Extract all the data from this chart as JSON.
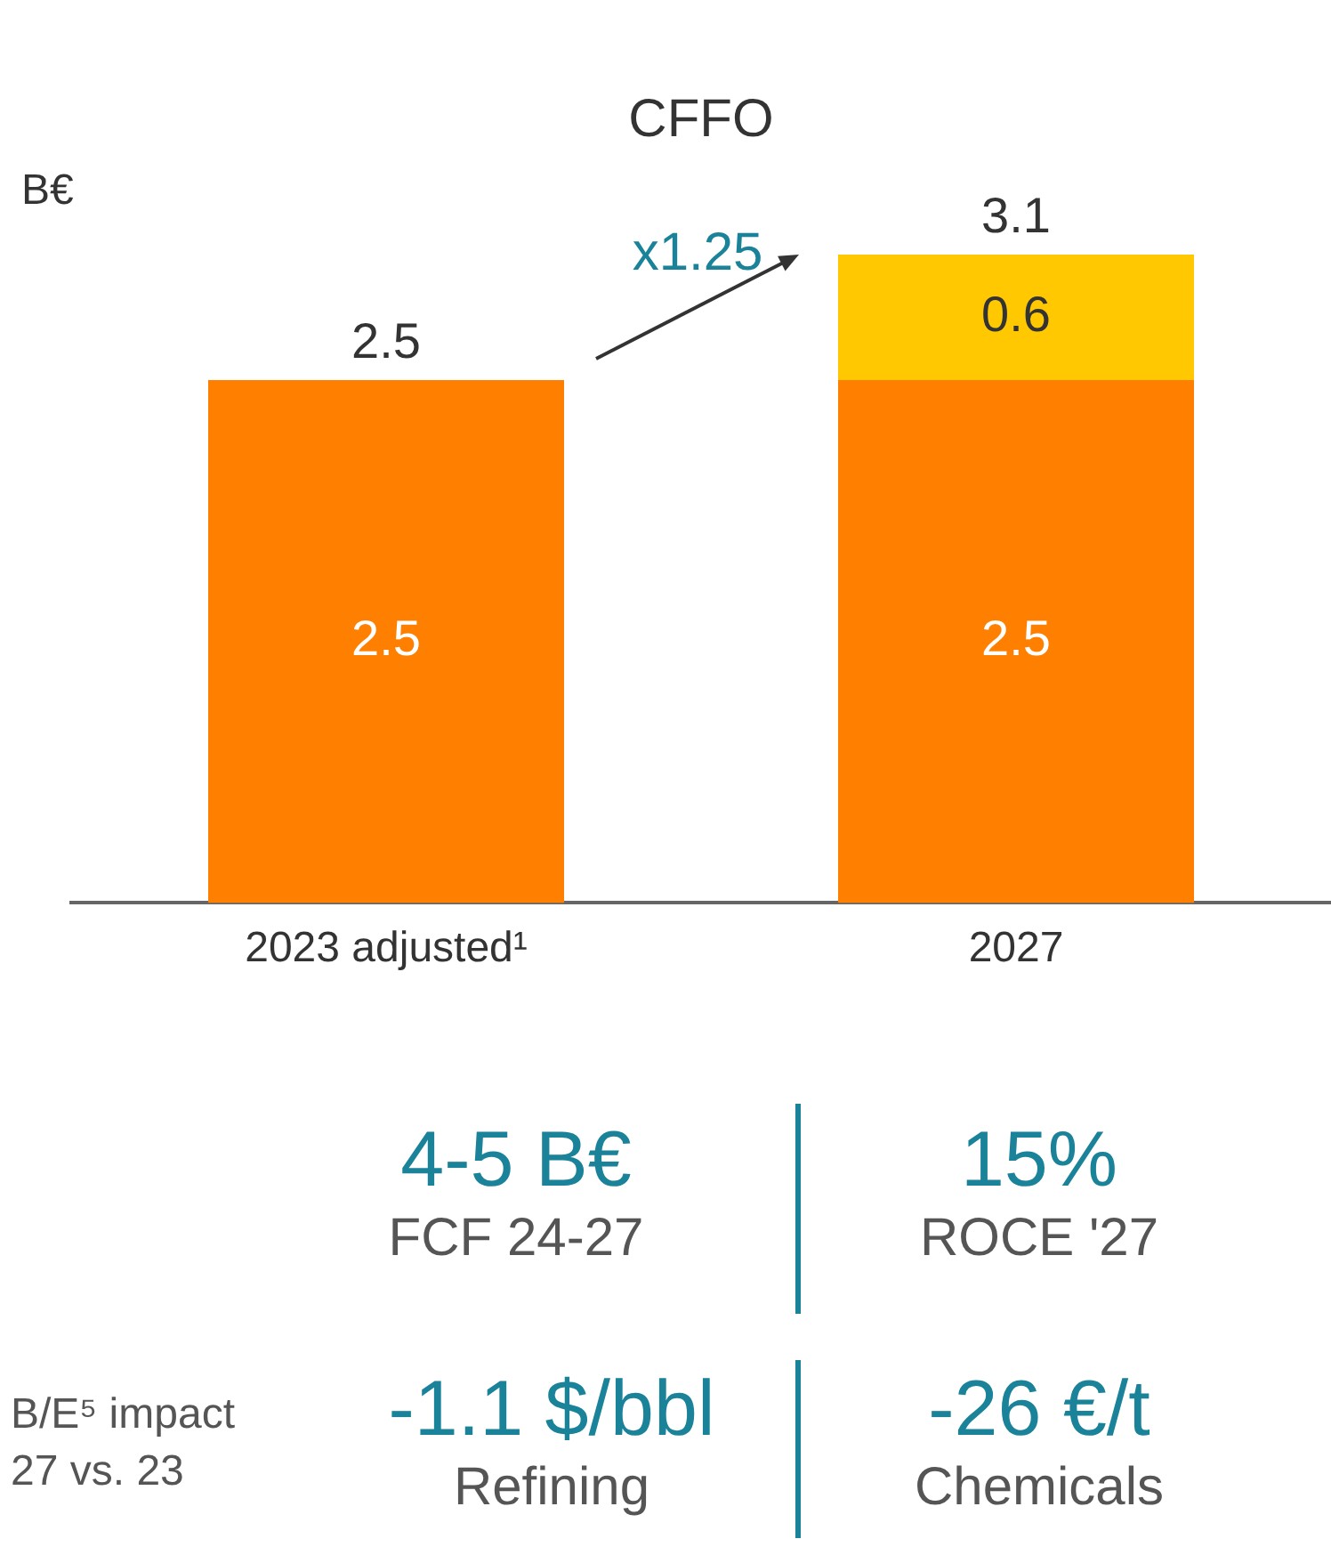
{
  "chart_data": {
    "type": "bar",
    "title": "CFFO",
    "ylabel": "B€",
    "stacked": true,
    "categories": [
      "2023 adjusted¹",
      "2027"
    ],
    "series": [
      {
        "color": "#ff8000",
        "values": [
          2.5,
          2.5
        ]
      },
      {
        "color": "#ffc800",
        "values": [
          null,
          0.6
        ]
      }
    ],
    "data_labels": true,
    "totals": [
      "2.5",
      "3.1"
    ],
    "legend": false,
    "grid": false,
    "annotations": [
      "x1.25",
      "4-5 B€",
      "FCF 24-27",
      "15%",
      "ROCE '27",
      "B/E⁵ impact",
      "27 vs. 23",
      "-1.1 $/bbl",
      "Refining",
      "-26 €/t",
      "Chemicals"
    ]
  }
}
